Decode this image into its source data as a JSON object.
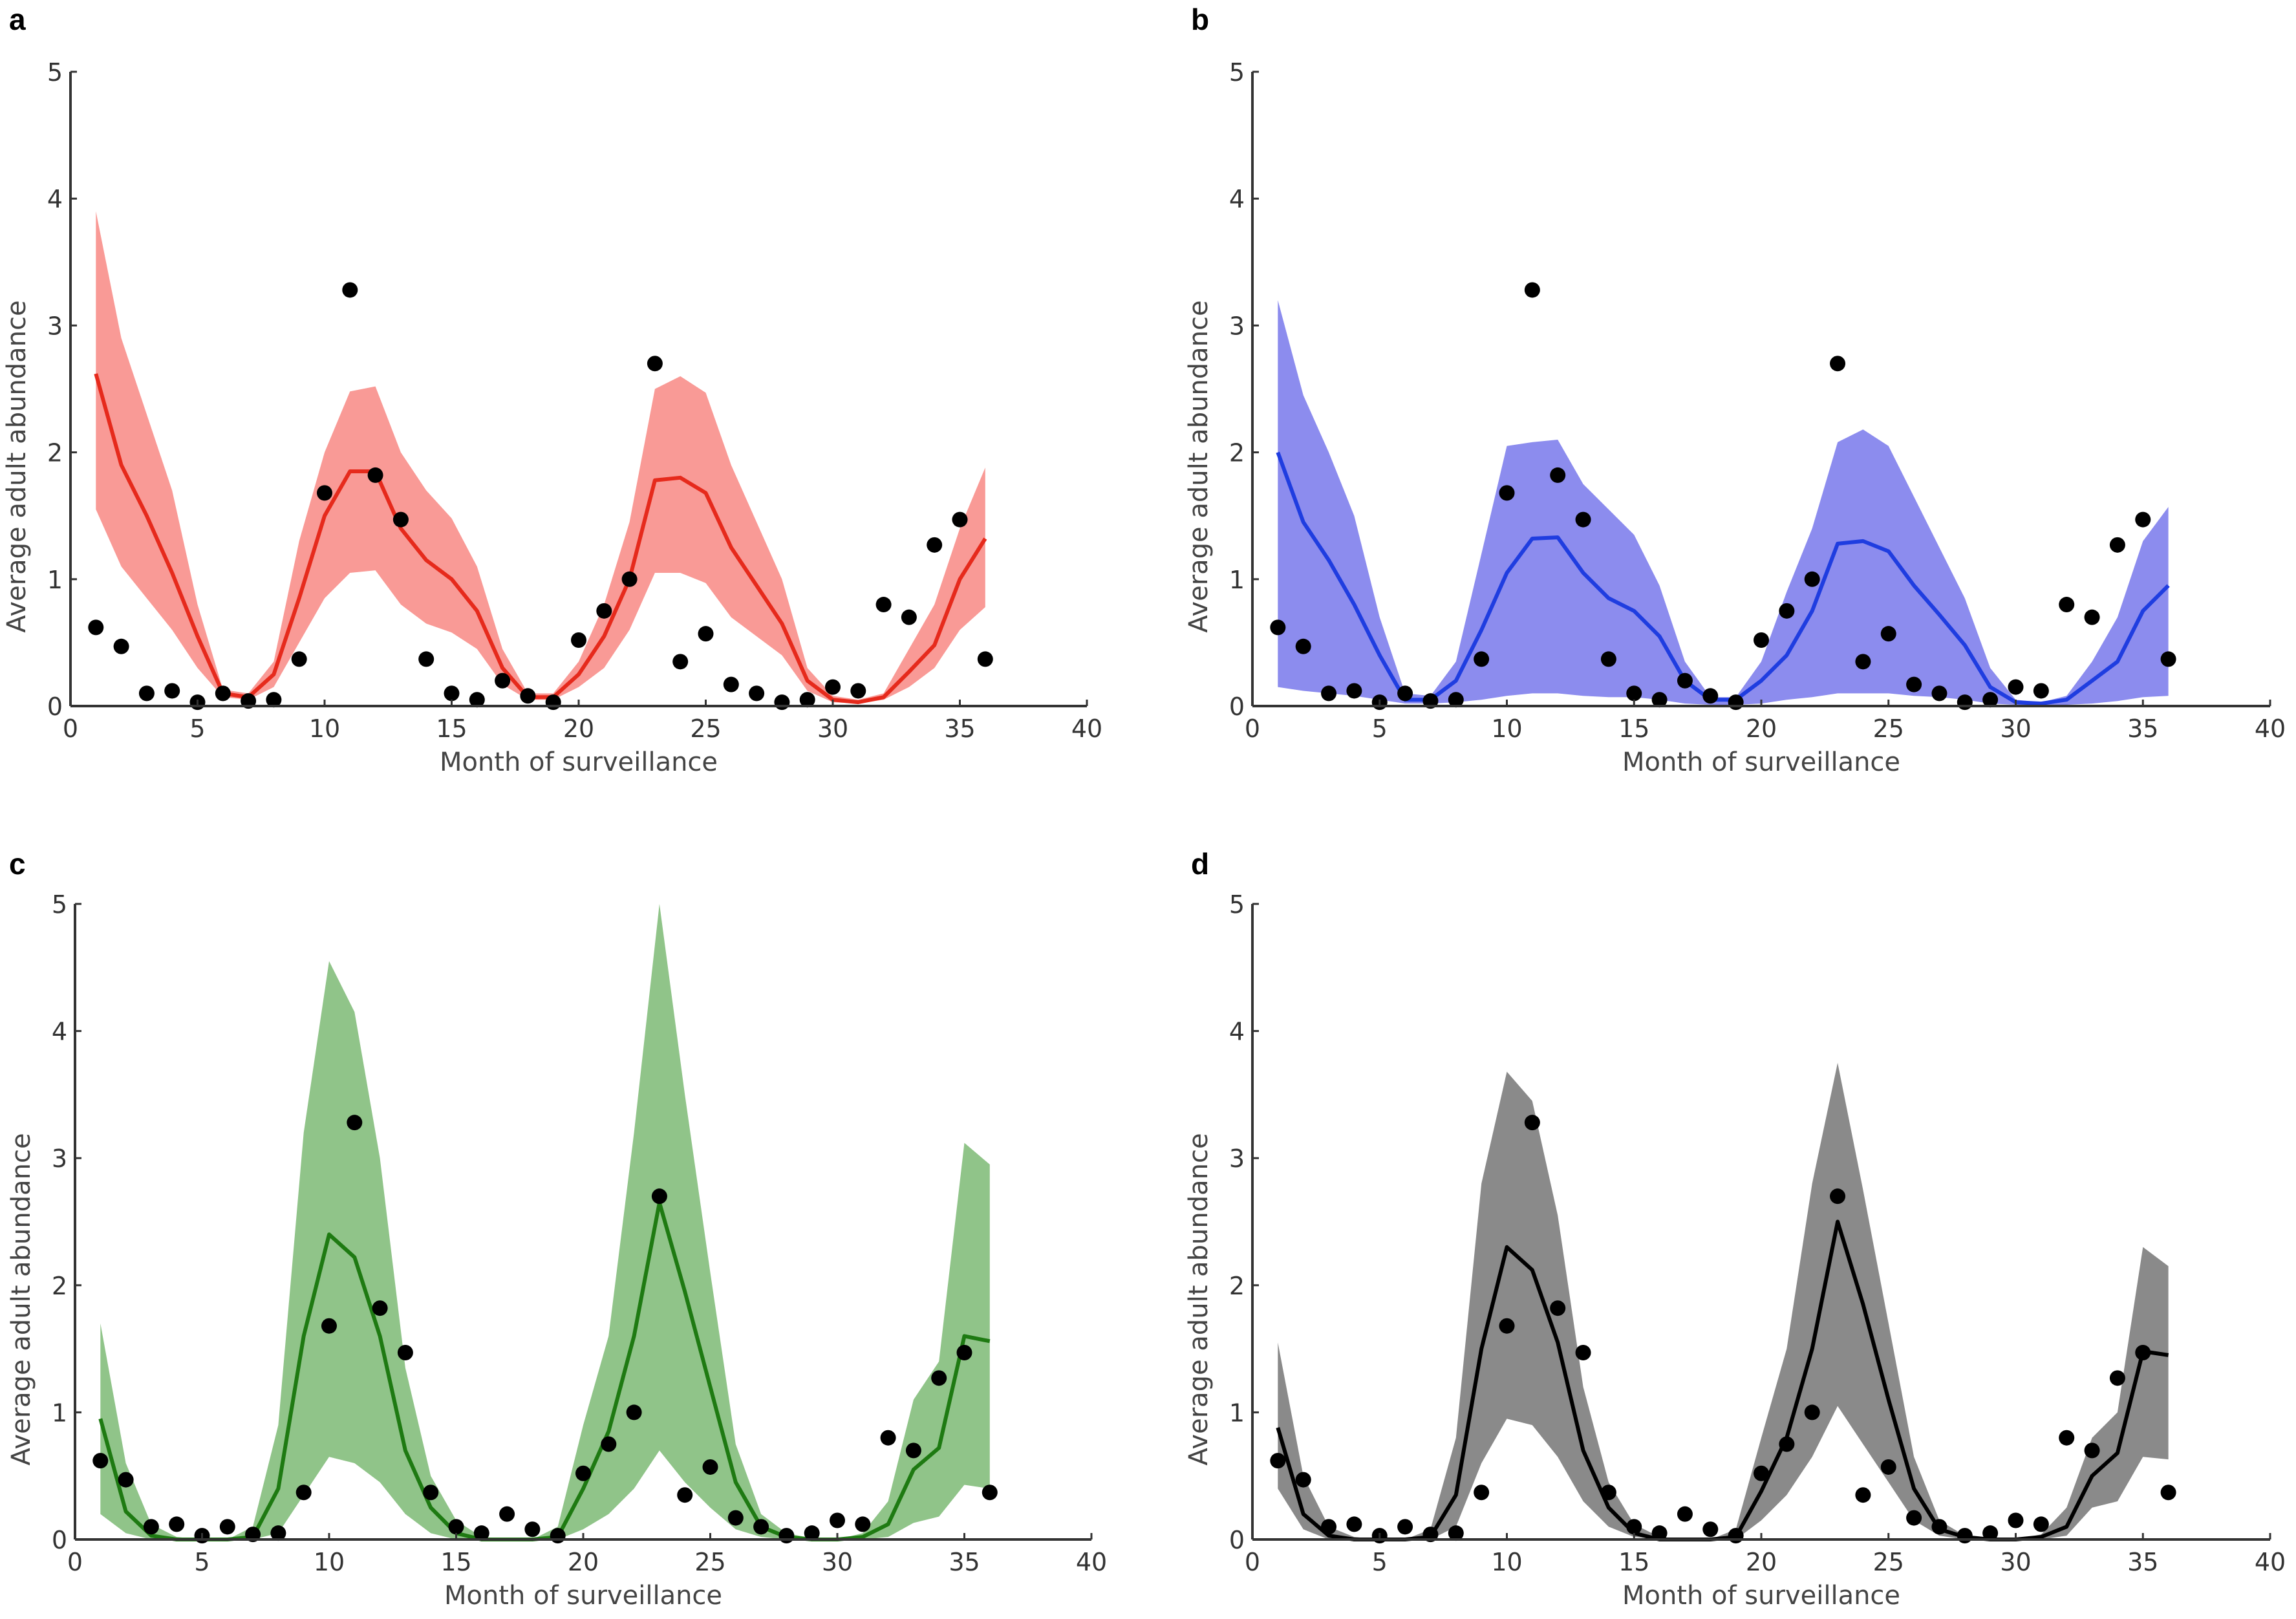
{
  "chart_data": {
    "type": "line",
    "shared": {
      "xlabel": "Month of surveillance",
      "ylabel": "Average adult abundance",
      "xlim": [
        0,
        40
      ],
      "ylim": [
        0,
        5
      ],
      "xticks": [
        "0",
        "5",
        "10",
        "15",
        "20",
        "25",
        "30",
        "35",
        "40"
      ],
      "yticks": [
        "0",
        "1",
        "2",
        "3",
        "4",
        "5"
      ],
      "grid": false,
      "x": [
        1,
        2,
        3,
        4,
        5,
        6,
        7,
        8,
        9,
        10,
        11,
        12,
        13,
        14,
        15,
        16,
        17,
        18,
        19,
        20,
        21,
        22,
        23,
        24,
        25,
        26,
        27,
        28,
        29,
        30,
        31,
        32,
        33,
        34,
        35,
        36
      ],
      "observed": [
        0.62,
        0.47,
        0.1,
        0.12,
        0.03,
        0.1,
        0.04,
        0.05,
        0.37,
        1.68,
        3.28,
        1.82,
        1.47,
        0.37,
        0.1,
        0.05,
        0.2,
        0.08,
        0.03,
        0.52,
        0.75,
        1.0,
        2.7,
        0.35,
        0.57,
        0.17,
        0.1,
        0.03,
        0.05,
        0.15,
        0.12,
        0.8,
        0.7,
        1.27,
        1.47,
        0.37
      ]
    },
    "panels": [
      {
        "label": "a",
        "line_color": "#e62a1c",
        "fill_color": "#f99a96",
        "mean": [
          2.62,
          1.9,
          1.5,
          1.05,
          0.55,
          0.1,
          0.07,
          0.25,
          0.85,
          1.5,
          1.85,
          1.85,
          1.4,
          1.15,
          1.0,
          0.75,
          0.3,
          0.07,
          0.07,
          0.25,
          0.55,
          1.0,
          1.78,
          1.8,
          1.68,
          1.25,
          0.95,
          0.65,
          0.2,
          0.05,
          0.03,
          0.07,
          0.27,
          0.48,
          1.0,
          1.32
        ],
        "upper": [
          3.9,
          2.9,
          2.3,
          1.7,
          0.8,
          0.13,
          0.1,
          0.35,
          1.3,
          2.0,
          2.48,
          2.52,
          2.0,
          1.7,
          1.48,
          1.1,
          0.45,
          0.1,
          0.1,
          0.35,
          0.8,
          1.45,
          2.5,
          2.6,
          2.47,
          1.9,
          1.45,
          1.0,
          0.3,
          0.08,
          0.05,
          0.1,
          0.45,
          0.8,
          1.4,
          1.88
        ],
        "lower": [
          1.55,
          1.1,
          0.85,
          0.6,
          0.3,
          0.07,
          0.05,
          0.15,
          0.5,
          0.85,
          1.05,
          1.07,
          0.8,
          0.65,
          0.58,
          0.45,
          0.17,
          0.05,
          0.05,
          0.15,
          0.3,
          0.6,
          1.05,
          1.05,
          0.97,
          0.7,
          0.55,
          0.4,
          0.12,
          0.03,
          0.02,
          0.05,
          0.15,
          0.3,
          0.6,
          0.78
        ]
      },
      {
        "label": "b",
        "line_color": "#1f3de0",
        "fill_color": "#8c8cee",
        "mean": [
          2.0,
          1.45,
          1.15,
          0.8,
          0.4,
          0.05,
          0.05,
          0.2,
          0.6,
          1.05,
          1.32,
          1.33,
          1.05,
          0.85,
          0.75,
          0.55,
          0.2,
          0.05,
          0.05,
          0.2,
          0.4,
          0.75,
          1.28,
          1.3,
          1.22,
          0.95,
          0.72,
          0.48,
          0.15,
          0.03,
          0.02,
          0.05,
          0.2,
          0.35,
          0.75,
          0.95
        ],
        "upper": [
          3.2,
          2.45,
          2.0,
          1.5,
          0.7,
          0.1,
          0.08,
          0.35,
          1.2,
          2.05,
          2.08,
          2.1,
          1.75,
          1.55,
          1.35,
          0.95,
          0.35,
          0.07,
          0.07,
          0.35,
          0.9,
          1.4,
          2.08,
          2.18,
          2.05,
          1.65,
          1.25,
          0.85,
          0.3,
          0.05,
          0.03,
          0.08,
          0.35,
          0.7,
          1.3,
          1.57
        ],
        "lower": [
          0.15,
          0.12,
          0.1,
          0.08,
          0.05,
          0.02,
          0.02,
          0.03,
          0.05,
          0.08,
          0.1,
          0.1,
          0.08,
          0.07,
          0.07,
          0.05,
          0.02,
          0.01,
          0.01,
          0.02,
          0.05,
          0.07,
          0.1,
          0.1,
          0.1,
          0.08,
          0.07,
          0.05,
          0.02,
          0.01,
          0.01,
          0.01,
          0.02,
          0.04,
          0.07,
          0.08
        ]
      },
      {
        "label": "c",
        "line_color": "#1e7a12",
        "fill_color": "#90c489",
        "mean": [
          0.95,
          0.22,
          0.03,
          0,
          0,
          0,
          0.02,
          0.4,
          1.6,
          2.4,
          2.22,
          1.6,
          0.7,
          0.25,
          0.05,
          0,
          0,
          0,
          0.02,
          0.4,
          0.85,
          1.6,
          2.65,
          1.95,
          1.2,
          0.45,
          0.1,
          0.02,
          0,
          0,
          0.02,
          0.12,
          0.55,
          0.72,
          1.6,
          1.56
        ],
        "upper": [
          1.7,
          0.6,
          0.12,
          0.02,
          0,
          0,
          0.1,
          0.9,
          3.2,
          4.55,
          4.15,
          3.0,
          1.35,
          0.5,
          0.15,
          0.02,
          0,
          0,
          0.1,
          0.9,
          1.6,
          3.2,
          5.0,
          3.5,
          2.1,
          0.75,
          0.2,
          0.05,
          0.01,
          0,
          0.05,
          0.3,
          1.1,
          1.4,
          3.12,
          2.95
        ],
        "lower": [
          0.2,
          0.05,
          0,
          0,
          0,
          0,
          0,
          0.05,
          0.35,
          0.65,
          0.6,
          0.45,
          0.2,
          0.05,
          0,
          0,
          0,
          0,
          0,
          0.08,
          0.2,
          0.4,
          0.7,
          0.45,
          0.25,
          0.08,
          0.02,
          0,
          0,
          0,
          0,
          0.02,
          0.13,
          0.18,
          0.43,
          0.4
        ]
      },
      {
        "label": "d",
        "line_color": "#000000",
        "fill_color": "#8a8a8a",
        "mean": [
          0.88,
          0.2,
          0.03,
          0,
          0,
          0,
          0.02,
          0.35,
          1.5,
          2.3,
          2.12,
          1.55,
          0.7,
          0.25,
          0.05,
          0,
          0,
          0,
          0.02,
          0.38,
          0.8,
          1.5,
          2.5,
          1.85,
          1.1,
          0.4,
          0.08,
          0.02,
          0,
          0,
          0.02,
          0.1,
          0.5,
          0.68,
          1.48,
          1.45
        ],
        "upper": [
          1.55,
          0.5,
          0.1,
          0.02,
          0,
          0,
          0.08,
          0.8,
          2.8,
          3.68,
          3.45,
          2.55,
          1.2,
          0.45,
          0.12,
          0.02,
          0,
          0,
          0.08,
          0.8,
          1.5,
          2.8,
          3.75,
          2.75,
          1.7,
          0.65,
          0.15,
          0.03,
          0.01,
          0,
          0.04,
          0.25,
          0.8,
          1.0,
          2.3,
          2.15
        ],
        "lower": [
          0.4,
          0.08,
          0,
          0,
          0,
          0,
          0,
          0.1,
          0.6,
          0.95,
          0.9,
          0.65,
          0.3,
          0.1,
          0.02,
          0,
          0,
          0,
          0,
          0.15,
          0.35,
          0.65,
          1.05,
          0.75,
          0.45,
          0.15,
          0.03,
          0,
          0,
          0,
          0,
          0.03,
          0.25,
          0.3,
          0.65,
          0.63
        ]
      }
    ]
  }
}
